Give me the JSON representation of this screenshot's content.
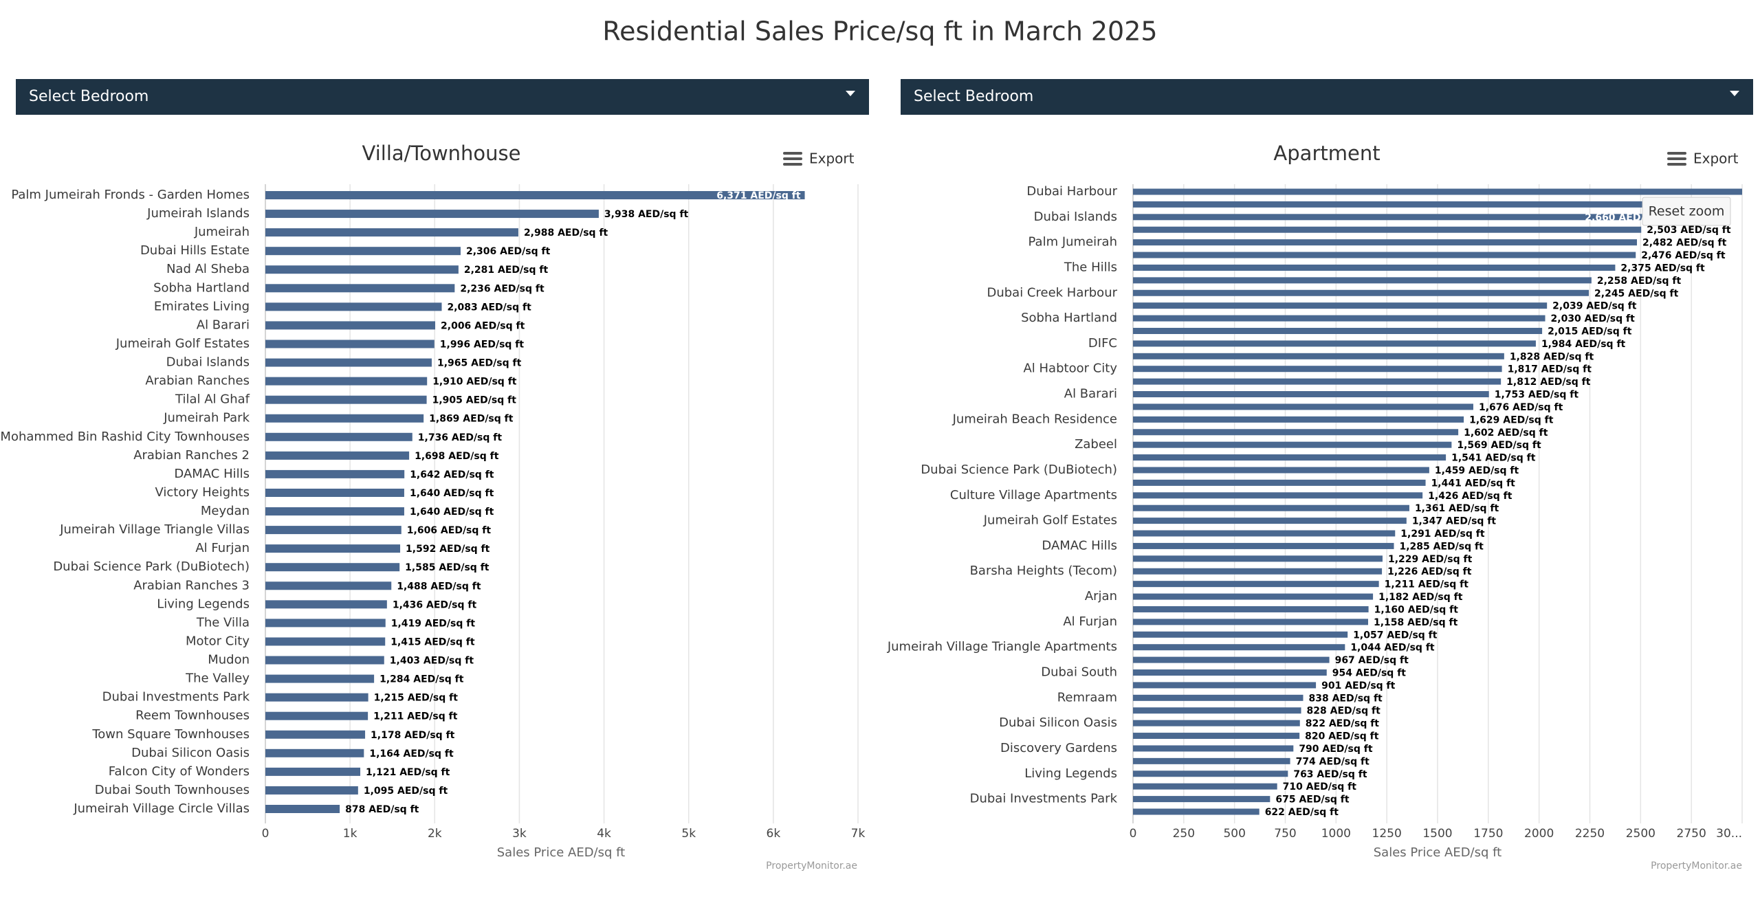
{
  "title": "Residential Sales Price/sq ft in March 2025",
  "filters": [
    "Select Bedroom",
    "Select Bedroom"
  ],
  "chart_data": [
    {
      "type": "bar",
      "orientation": "horizontal",
      "title": "Villa/Townhouse",
      "export_label": "Export",
      "xlabel": "Sales Price AED/sq ft",
      "credit": "PropertyMonitor.ae",
      "color": "#4a6890",
      "grid": true,
      "categories": [
        "Palm Jumeirah Fronds - Garden Homes",
        "Jumeirah Islands",
        "Jumeirah",
        "Dubai Hills Estate",
        "Nad Al Sheba",
        "Sobha Hartland",
        "Emirates Living",
        "Al Barari",
        "Jumeirah Golf Estates",
        "Dubai Islands",
        "Arabian Ranches",
        "Tilal Al Ghaf",
        "Jumeirah Park",
        "Mohammed Bin Rashid City Townhouses",
        "Arabian Ranches 2",
        "DAMAC Hills",
        "Victory Heights",
        "Meydan",
        "Jumeirah Village Triangle Villas",
        "Al Furjan",
        "Dubai Science Park (DuBiotech)",
        "Arabian Ranches 3",
        "Living Legends",
        "The Villa",
        "Motor City",
        "Mudon",
        "The Valley",
        "Dubai Investments Park",
        "Reem Townhouses",
        "Town Square Townhouses",
        "Dubai Silicon Oasis",
        "Falcon City of Wonders",
        "Dubai South Townhouses",
        "Jumeirah Village Circle Villas"
      ],
      "values": [
        6371,
        3938,
        2988,
        2306,
        2281,
        2236,
        2083,
        2006,
        1996,
        1965,
        1910,
        1905,
        1869,
        1736,
        1698,
        1642,
        1640,
        1640,
        1606,
        1592,
        1585,
        1488,
        1436,
        1419,
        1415,
        1403,
        1284,
        1215,
        1211,
        1178,
        1164,
        1121,
        1095,
        878
      ],
      "value_labels": [
        "6,371 AED/sq ft",
        "3,938 AED/sq ft",
        "2,988 AED/sq ft",
        "2,306 AED/sq ft",
        "2,281 AED/sq ft",
        "2,236 AED/sq ft",
        "2,083 AED/sq ft",
        "2,006 AED/sq ft",
        "1,996 AED/sq ft",
        "1,965 AED/sq ft",
        "1,910 AED/sq ft",
        "1,905 AED/sq ft",
        "1,869 AED/sq ft",
        "1,736 AED/sq ft",
        "1,698 AED/sq ft",
        "1,642 AED/sq ft",
        "1,640 AED/sq ft",
        "1,640 AED/sq ft",
        "1,606 AED/sq ft",
        "1,592 AED/sq ft",
        "1,585 AED/sq ft",
        "1,488 AED/sq ft",
        "1,436 AED/sq ft",
        "1,419 AED/sq ft",
        "1,415 AED/sq ft",
        "1,403 AED/sq ft",
        "1,284 AED/sq ft",
        "1,215 AED/sq ft",
        "1,211 AED/sq ft",
        "1,178 AED/sq ft",
        "1,164 AED/sq ft",
        "1,121 AED/sq ft",
        "1,095 AED/sq ft",
        "878 AED/sq ft"
      ],
      "xlim": [
        0,
        7000
      ],
      "xticks": [
        0,
        {
          "value": 1000,
          "label": "1k"
        },
        {
          "value": 2000,
          "label": "2k"
        },
        {
          "value": 3000,
          "label": "3k"
        },
        {
          "value": 4000,
          "label": "4k"
        },
        {
          "value": 5000,
          "label": "5k"
        },
        {
          "value": 6000,
          "label": "6k"
        },
        {
          "value": 7000,
          "label": "7k"
        }
      ]
    },
    {
      "type": "bar",
      "orientation": "horizontal",
      "title": "Apartment",
      "export_label": "Export",
      "reset_zoom": "Reset zoom",
      "xlabel": "Sales Price AED/sq ft",
      "credit": "PropertyMonitor.ae",
      "color": "#4a6890",
      "grid": true,
      "categories": [
        "Dubai Harbour",
        null,
        "Dubai Islands",
        null,
        "Palm Jumeirah",
        null,
        "The Hills",
        null,
        "Dubai Creek Harbour",
        null,
        "Sobha Hartland",
        null,
        "DIFC",
        null,
        "Al Habtoor City",
        null,
        "Al Barari",
        null,
        "Jumeirah Beach Residence",
        null,
        "Zabeel",
        null,
        "Dubai Science Park (DuBiotech)",
        null,
        "Culture Village Apartments",
        null,
        "Jumeirah Golf Estates",
        null,
        "DAMAC Hills",
        null,
        "Barsha Heights (Tecom)",
        null,
        "Arjan",
        null,
        "Al Furjan",
        null,
        "Jumeirah Village Triangle Apartments",
        null,
        "Dubai South",
        null,
        "Remraam",
        null,
        "Dubai Silicon Oasis",
        null,
        "Discovery Gardens",
        null,
        "Living Legends",
        null,
        "Dubai Investments Park",
        null
      ],
      "values": [
        3100,
        2800,
        2660,
        2503,
        2482,
        2476,
        2375,
        2258,
        2245,
        2039,
        2030,
        2015,
        1984,
        1828,
        1817,
        1812,
        1753,
        1676,
        1629,
        1602,
        1569,
        1541,
        1459,
        1441,
        1426,
        1361,
        1347,
        1291,
        1285,
        1229,
        1226,
        1211,
        1182,
        1160,
        1158,
        1057,
        1044,
        967,
        954,
        901,
        838,
        828,
        822,
        820,
        790,
        774,
        763,
        710,
        675,
        622
      ],
      "value_labels": [
        null,
        null,
        "2,660 AED/sq ft",
        "2,503 AED/sq ft",
        "2,482 AED/sq ft",
        "2,476 AED/sq ft",
        "2,375 AED/sq ft",
        "2,258 AED/sq ft",
        "2,245 AED/sq ft",
        "2,039 AED/sq ft",
        "2,030 AED/sq ft",
        "2,015 AED/sq ft",
        "1,984 AED/sq ft",
        "1,828 AED/sq ft",
        "1,817 AED/sq ft",
        "1,812 AED/sq ft",
        "1,753 AED/sq ft",
        "1,676 AED/sq ft",
        "1,629 AED/sq ft",
        "1,602 AED/sq ft",
        "1,569 AED/sq ft",
        "1,541 AED/sq ft",
        "1,459 AED/sq ft",
        "1,441 AED/sq ft",
        "1,426 AED/sq ft",
        "1,361 AED/sq ft",
        "1,347 AED/sq ft",
        "1,291 AED/sq ft",
        "1,285 AED/sq ft",
        "1,229 AED/sq ft",
        "1,226 AED/sq ft",
        "1,211 AED/sq ft",
        "1,182 AED/sq ft",
        "1,160 AED/sq ft",
        "1,158 AED/sq ft",
        "1,057 AED/sq ft",
        "1,044 AED/sq ft",
        "967 AED/sq ft",
        "954 AED/sq ft",
        "901 AED/sq ft",
        "838 AED/sq ft",
        "828 AED/sq ft",
        "822 AED/sq ft",
        "820 AED/sq ft",
        "790 AED/sq ft",
        "774 AED/sq ft",
        "763 AED/sq ft",
        "710 AED/sq ft",
        "675 AED/sq ft",
        "622 AED/sq ft"
      ],
      "xlim": [
        0,
        3000
      ],
      "xticks": [
        0,
        250,
        500,
        750,
        1000,
        1250,
        1500,
        1750,
        2000,
        2250,
        2500,
        2750,
        {
          "value": 3000,
          "label": "30..."
        }
      ]
    }
  ]
}
